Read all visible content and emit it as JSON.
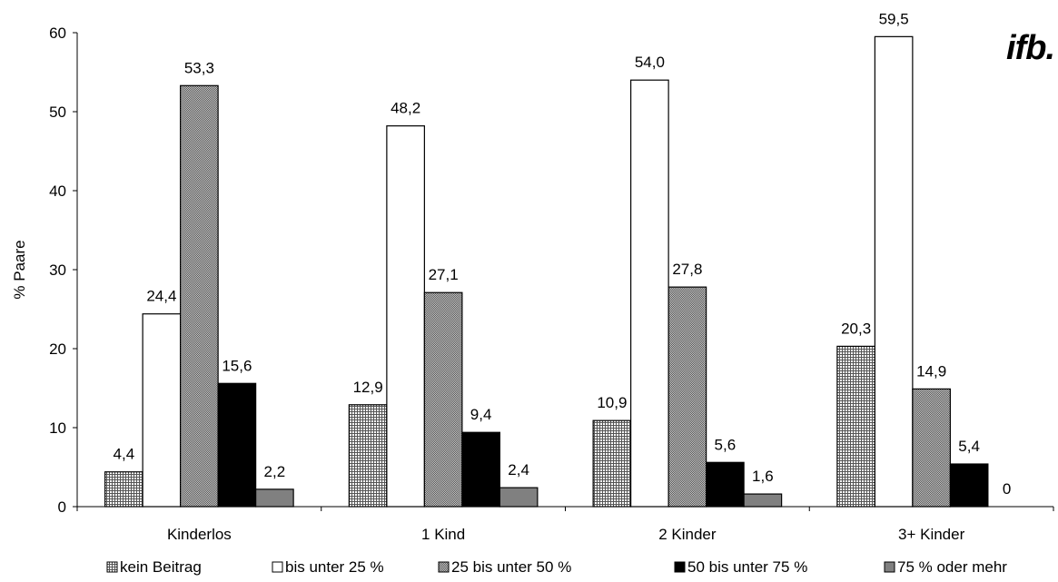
{
  "logo_text": "ifb.",
  "chart_data": {
    "type": "bar",
    "categories": [
      "Kinderlos",
      "1 Kind",
      "2 Kinder",
      "3+ Kinder"
    ],
    "ylabel": "% Paare",
    "xlabel": "",
    "ylim": [
      0,
      60
    ],
    "yticks": [
      0,
      10,
      20,
      30,
      40,
      50,
      60
    ],
    "grid": false,
    "legend_position": "bottom",
    "series": [
      {
        "name": "kein Beitrag",
        "values": [
          4.4,
          12.9,
          10.9,
          20.3
        ],
        "labels": [
          "4,4",
          "12,9",
          "10,9",
          "20,3"
        ],
        "fill": "crosshatch"
      },
      {
        "name": "bis unter 25 %",
        "values": [
          24.4,
          48.2,
          54.0,
          59.5
        ],
        "labels": [
          "24,4",
          "48,2",
          "54,0",
          "59,5"
        ],
        "fill": "#ffffff"
      },
      {
        "name": "25 bis unter 50 %",
        "values": [
          53.3,
          27.1,
          27.8,
          14.9
        ],
        "labels": [
          "53,3",
          "27,1",
          "27,8",
          "14,9"
        ],
        "fill": "dots"
      },
      {
        "name": "50 bis unter 75 %",
        "values": [
          15.6,
          9.4,
          5.6,
          5.4
        ],
        "labels": [
          "15,6",
          "9,4",
          "5,6",
          "5,4"
        ],
        "fill": "#000000"
      },
      {
        "name": "75 % oder mehr",
        "values": [
          2.2,
          2.4,
          1.6,
          0
        ],
        "labels": [
          "2,2",
          "2,4",
          "1,6",
          "0"
        ],
        "fill": "#808080"
      }
    ]
  }
}
